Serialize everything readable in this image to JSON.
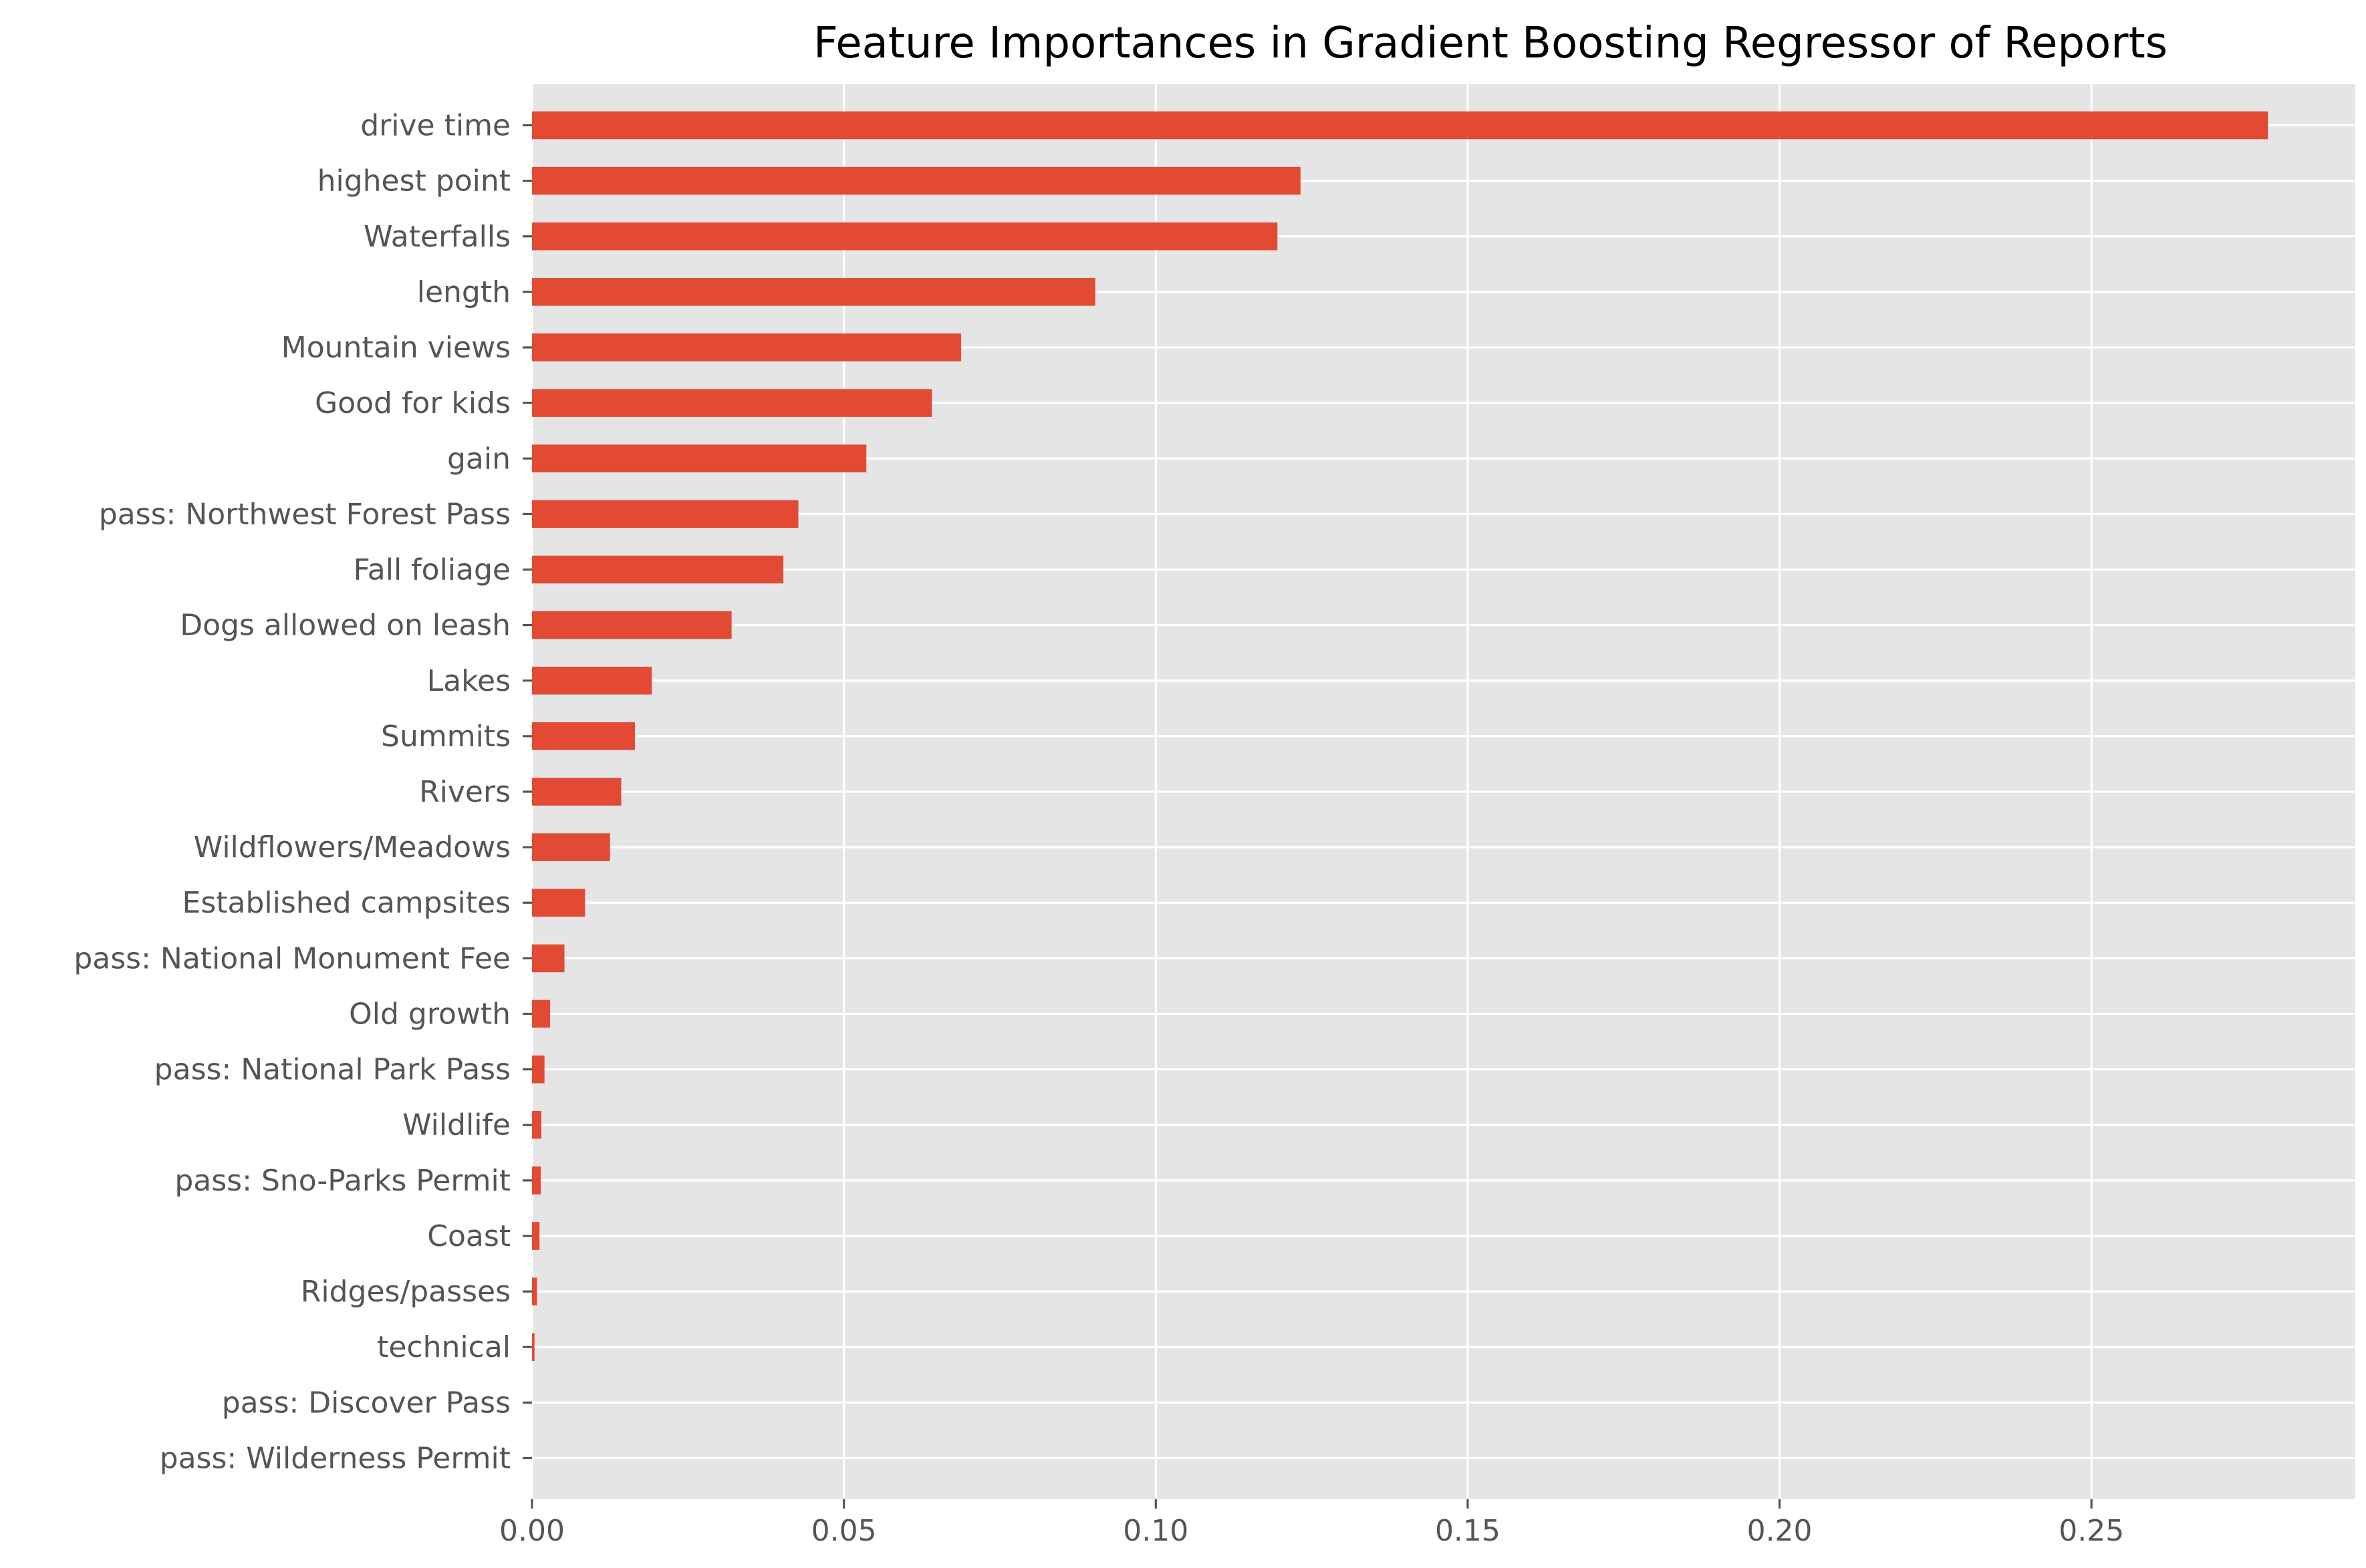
{
  "chart_data": {
    "type": "bar",
    "orientation": "horizontal",
    "title": "Feature Importances in Gradient Boosting Regressor of Reports",
    "xlabel": "",
    "ylabel": "",
    "categories": [
      "drive time",
      "highest point",
      "Waterfalls",
      "length",
      "Mountain views",
      "Good for kids",
      "gain",
      "pass: Northwest Forest Pass",
      "Fall foliage",
      "Dogs allowed on leash",
      "Lakes",
      "Summits",
      "Rivers",
      "Wildflowers/Meadows",
      "Established campsites",
      "pass: National Monument Fee",
      "Old growth",
      "pass: National Park Pass",
      "Wildlife",
      "pass: Sno-Parks Permit",
      "Coast",
      "Ridges/passes",
      "technical",
      "pass: Discover Pass",
      "pass: Wilderness Permit"
    ],
    "values": [
      0.2783,
      0.1232,
      0.1195,
      0.0903,
      0.0688,
      0.0641,
      0.0536,
      0.0427,
      0.0403,
      0.032,
      0.0192,
      0.0165,
      0.0143,
      0.0125,
      0.0085,
      0.0052,
      0.0029,
      0.002,
      0.0015,
      0.0014,
      0.0012,
      0.0008,
      0.0004,
      0.0,
      0.0
    ],
    "xlim": [
      0,
      0.2923
    ],
    "xticks": [
      0.0,
      0.05,
      0.1,
      0.15,
      0.2,
      0.25
    ],
    "xtick_labels": [
      "0.00",
      "0.05",
      "0.10",
      "0.15",
      "0.20",
      "0.25"
    ],
    "grid": true,
    "legend": "none",
    "colors": {
      "bar": "#E24A33",
      "background": "#E5E5E5",
      "grid": "#FFFFFF",
      "tick_text": "#555555",
      "title_text": "#000000"
    }
  }
}
